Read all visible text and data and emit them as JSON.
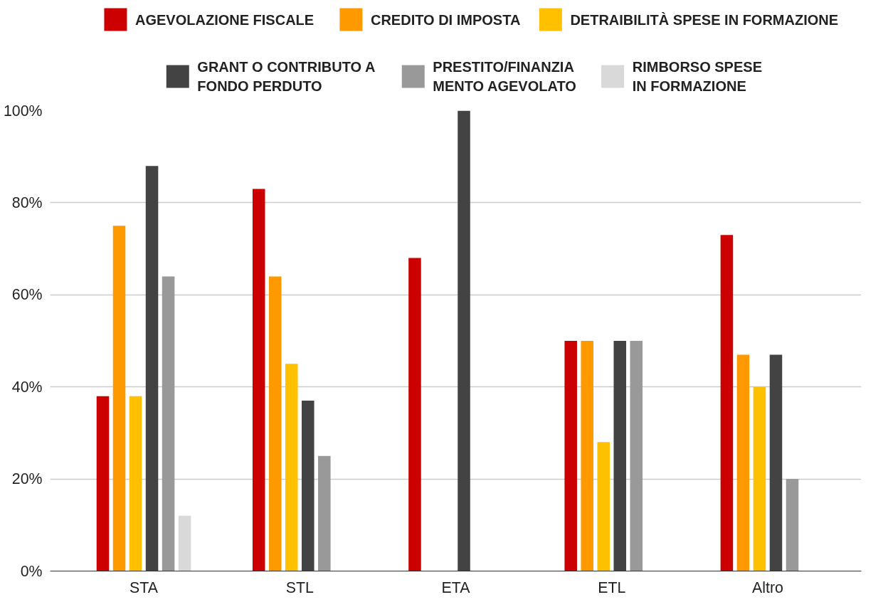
{
  "chart_data": {
    "type": "bar",
    "categories": [
      "STA",
      "STL",
      "ETA",
      "ETL",
      "Altro"
    ],
    "series": [
      {
        "name": "AGEVOLAZIONE FISCALE",
        "color": "#cc0000",
        "values": [
          38,
          83,
          68,
          50,
          73
        ]
      },
      {
        "name": "CREDITO DI IMPOSTA",
        "color": "#ff9900",
        "values": [
          75,
          64,
          0,
          50,
          47
        ]
      },
      {
        "name": "DETRAIBILITÀ SPESE IN FORMAZIONE",
        "color": "#ffc000",
        "values": [
          38,
          45,
          0,
          28,
          40
        ]
      },
      {
        "name": "GRANT O CONTRIBUTO A\nFONDO PERDUTO",
        "color": "#434343",
        "values": [
          88,
          37,
          100,
          50,
          47
        ]
      },
      {
        "name": "PRESTITO/FINANZIA\nMENTO AGEVOLATO",
        "color": "#999999",
        "values": [
          64,
          25,
          0,
          50,
          20
        ]
      },
      {
        "name": "RIMBORSO SPESE\nIN FORMAZIONE",
        "color": "#d9d9d9",
        "values": [
          12,
          0,
          0,
          0,
          0
        ]
      }
    ],
    "ylim": [
      0,
      100
    ],
    "yticks": [
      {
        "value": 0,
        "label": "0%"
      },
      {
        "value": 20,
        "label": "20%"
      },
      {
        "value": 40,
        "label": "40%"
      },
      {
        "value": 60,
        "label": "60%"
      },
      {
        "value": 80,
        "label": "80%"
      },
      {
        "value": 100,
        "label": "100%"
      }
    ],
    "grid": "y",
    "legend": "top"
  }
}
